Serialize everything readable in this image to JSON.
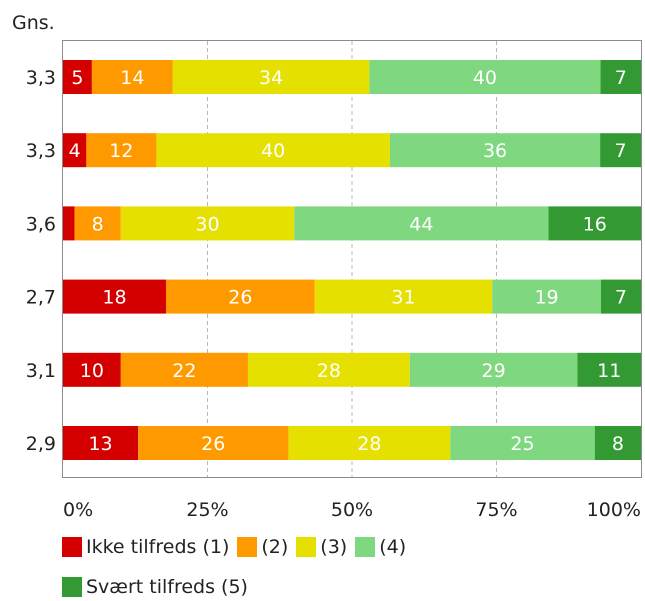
{
  "chart_data": {
    "type": "bar",
    "orientation": "horizontal",
    "stacked": true,
    "title": "",
    "row_header": "Gns.",
    "categories": [
      "3,3",
      "3,3",
      "3,6",
      "2,7",
      "3,1",
      "2,9"
    ],
    "series": [
      {
        "name": "Ikke tilfreds (1)",
        "color": "#d40000",
        "values": [
          5,
          4,
          2,
          18,
          10,
          13
        ],
        "labels": [
          "5",
          "4",
          "",
          "18",
          "10",
          "13"
        ]
      },
      {
        "name": "(2)",
        "color": "#ff9900",
        "values": [
          14,
          12,
          8,
          26,
          22,
          26
        ],
        "labels": [
          "14",
          "12",
          "8",
          "26",
          "22",
          "26"
        ]
      },
      {
        "name": "(3)",
        "color": "#e5e000",
        "values": [
          34,
          40,
          30,
          31,
          28,
          28
        ],
        "labels": [
          "34",
          "40",
          "30",
          "31",
          "28",
          "28"
        ]
      },
      {
        "name": "(4)",
        "color": "#7fd87f",
        "values": [
          40,
          36,
          44,
          19,
          29,
          25
        ],
        "labels": [
          "40",
          "36",
          "44",
          "19",
          "29",
          "25"
        ]
      },
      {
        "name": "Svært tilfreds (5)",
        "color": "#339933",
        "values": [
          7,
          7,
          16,
          7,
          11,
          8
        ],
        "labels": [
          "7",
          "7",
          "16",
          "7",
          "11",
          "8"
        ]
      }
    ],
    "x_ticks": [
      "0%",
      "25%",
      "50%",
      "75%",
      "100%"
    ],
    "xlim": [
      0,
      100
    ],
    "grid": "vertical dashed",
    "legend_position": "bottom"
  }
}
